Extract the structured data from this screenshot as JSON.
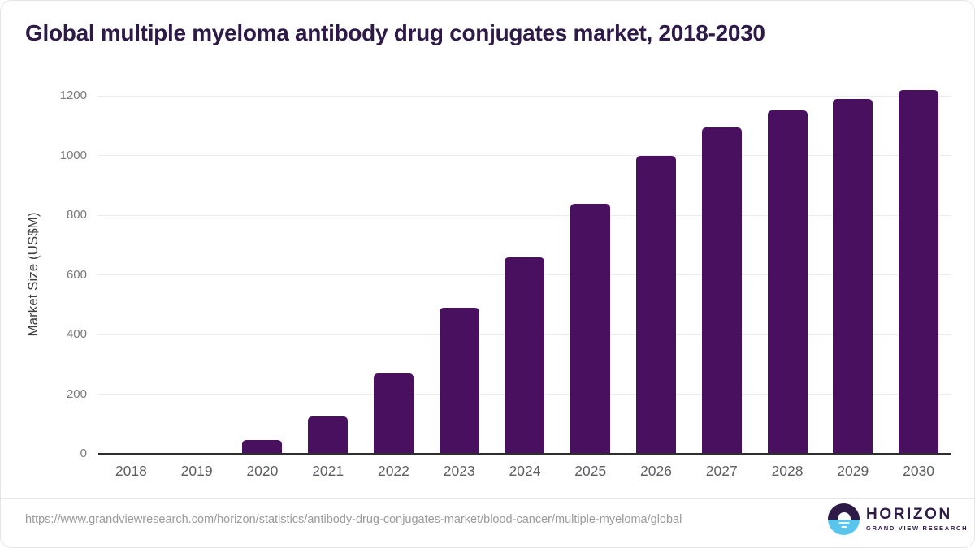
{
  "title": "Global multiple myeloma antibody drug conjugates market, 2018-2030",
  "chart_data": {
    "type": "bar",
    "categories": [
      "2018",
      "2019",
      "2020",
      "2021",
      "2022",
      "2023",
      "2024",
      "2025",
      "2026",
      "2027",
      "2028",
      "2029",
      "2030"
    ],
    "values": [
      0,
      0,
      45,
      125,
      270,
      490,
      658,
      838,
      998,
      1095,
      1150,
      1190,
      1220
    ],
    "title": "Global multiple myeloma antibody drug conjugates market, 2018-2030",
    "xlabel": "",
    "ylabel": "Market Size (US$M)",
    "ylim": [
      0,
      1200
    ],
    "yticks": [
      0,
      200,
      400,
      600,
      800,
      1000,
      1200
    ],
    "grid": true,
    "legend": "none",
    "bar_color": "#4a1060"
  },
  "footer": {
    "source_url": "https://www.grandviewresearch.com/horizon/statistics/antibody-drug-conjugates-market/blood-cancer/multiple-myeloma/global",
    "logo": {
      "icon": "horizon-sun-icon",
      "name": "HORIZON",
      "subtitle": "GRAND VIEW RESEARCH"
    }
  },
  "colors": {
    "title_purple": "#2e1a47",
    "bar_purple": "#4a1060",
    "logo_dark": "#2e1a47",
    "logo_blue": "#59c4ec",
    "gridline": "#ececec"
  }
}
